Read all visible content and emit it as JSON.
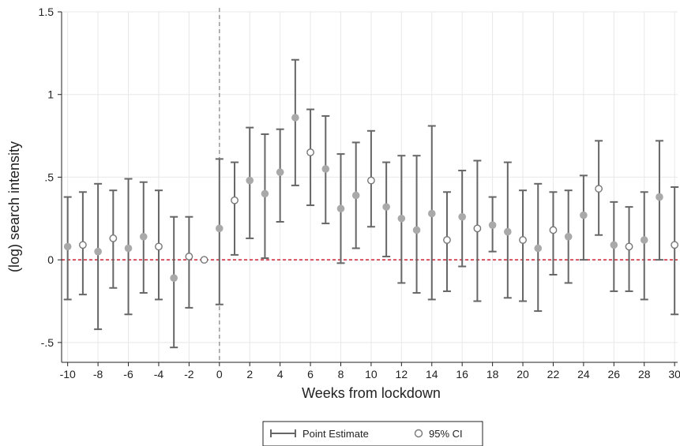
{
  "chart_data": {
    "type": "scatter",
    "xlabel": "Weeks from lockdown",
    "ylabel": "(log) search intensity",
    "xlim": [
      -10.4,
      30.2
    ],
    "ylim": [
      -0.62,
      1.5
    ],
    "xticks": [
      "-10",
      "-8",
      "-6",
      "-4",
      "-2",
      "0",
      "2",
      "4",
      "6",
      "8",
      "10",
      "12",
      "14",
      "16",
      "18",
      "20",
      "22",
      "24",
      "26",
      "28",
      "30"
    ],
    "yticks": [
      "-.5",
      "0",
      ".5",
      "1",
      "1.5"
    ],
    "ytick_values": [
      -0.5,
      0,
      0.5,
      1,
      1.5
    ],
    "vertical_reference_line_x": 0,
    "horizontal_reference_line_y": 0,
    "grid": true,
    "legend": {
      "placement": "bottom-center",
      "entries": [
        "Point Estimate",
        "95% CI"
      ]
    },
    "colors": {
      "points": "#a9a9a9",
      "hollow_points": "#777777",
      "ci_bars": "#666666",
      "zero_line": "#cc2233",
      "vline": "#999999",
      "grid": "#e8e8e8"
    },
    "x": [
      -10,
      -9,
      -8,
      -7,
      -6,
      -5,
      -4,
      -3,
      -2,
      -1,
      0,
      1,
      2,
      3,
      4,
      5,
      6,
      7,
      8,
      9,
      10,
      11,
      12,
      13,
      14,
      15,
      16,
      17,
      18,
      19,
      20,
      21,
      22,
      23,
      24,
      25,
      26,
      27,
      28,
      29,
      30
    ],
    "estimate": [
      0.08,
      0.09,
      0.05,
      0.13,
      0.07,
      0.14,
      0.08,
      -0.11,
      0.02,
      0.0,
      0.19,
      0.36,
      0.48,
      0.4,
      0.53,
      0.86,
      0.65,
      0.55,
      0.31,
      0.39,
      0.48,
      0.32,
      0.25,
      0.18,
      0.28,
      0.12,
      0.26,
      0.19,
      0.21,
      0.17,
      0.12,
      0.07,
      0.18,
      0.14,
      0.27,
      0.43,
      0.09,
      0.08,
      0.12,
      0.38,
      0.09
    ],
    "ci_low": [
      -0.24,
      -0.21,
      -0.42,
      -0.17,
      -0.33,
      -0.2,
      -0.24,
      -0.53,
      -0.29,
      null,
      -0.27,
      0.03,
      0.13,
      0.01,
      0.23,
      0.45,
      0.33,
      0.22,
      -0.02,
      0.07,
      0.2,
      0.02,
      -0.14,
      -0.2,
      -0.24,
      -0.19,
      -0.04,
      -0.25,
      0.05,
      -0.23,
      -0.25,
      -0.31,
      -0.09,
      -0.14,
      0.0,
      0.15,
      -0.19,
      -0.19,
      -0.24,
      0.0,
      -0.33
    ],
    "ci_high": [
      0.38,
      0.41,
      0.46,
      0.42,
      0.49,
      0.47,
      0.42,
      0.26,
      0.26,
      null,
      0.61,
      0.59,
      0.8,
      0.76,
      0.79,
      1.21,
      0.91,
      0.87,
      0.64,
      0.71,
      0.78,
      0.59,
      0.63,
      0.63,
      0.81,
      0.41,
      0.54,
      0.6,
      0.38,
      0.59,
      0.42,
      0.46,
      0.41,
      0.42,
      0.51,
      0.72,
      0.35,
      0.32,
      0.41,
      0.72,
      0.44
    ],
    "hollow": [
      false,
      true,
      false,
      true,
      false,
      false,
      true,
      false,
      true,
      true,
      false,
      true,
      false,
      false,
      false,
      false,
      true,
      false,
      false,
      false,
      true,
      false,
      false,
      false,
      false,
      true,
      false,
      true,
      false,
      false,
      true,
      false,
      true,
      false,
      false,
      true,
      false,
      true,
      false,
      false,
      true
    ]
  }
}
